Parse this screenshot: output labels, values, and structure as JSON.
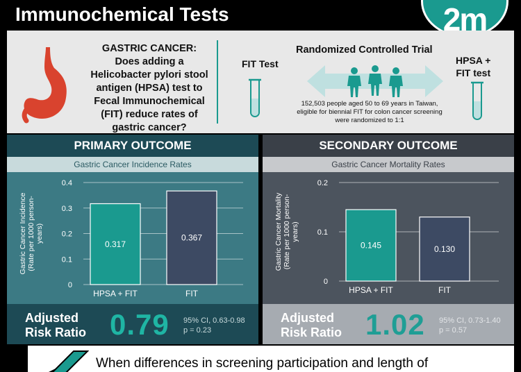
{
  "header": {
    "title": "Immunochemical Tests",
    "logo_text": "2m"
  },
  "intro": {
    "question_lines": [
      "GASTRIC CANCER:",
      "Does adding a",
      "Helicobacter pylori stool",
      "antigen (HPSA) test to",
      "Fecal Immunochemical",
      "(FIT) reduce rates of",
      "gastric cancer?"
    ],
    "fit_test_label": "FIT Test",
    "hpsa_test_label_lines": [
      "HPSA +",
      "FIT test"
    ],
    "rct_title": "Randomized Controlled Trial",
    "rct_desc_lines": [
      "152,503 people aged 50 to 69 years in Taiwan,",
      "eligible for biennial FIT for colon cancer screening",
      "were randomized to 1:1"
    ]
  },
  "panels": {
    "primary": {
      "heading": "PRIMARY OUTCOME",
      "subheading": "Gastric Cancer Incidence Rates",
      "arr_label_lines": [
        "Adjusted",
        "Risk Ratio"
      ],
      "arr_value": "0.79",
      "arr_ci_lines": [
        "95% CI, 0.63-0.98",
        "p = 0.23"
      ]
    },
    "secondary": {
      "heading": "SECONDARY OUTCOME",
      "subheading": "Gastric Cancer Mortality Rates",
      "arr_label_lines": [
        "Adjusted",
        "Risk Ratio"
      ],
      "arr_value": "1.02",
      "arr_ci_lines": [
        "95% CI, 0.73-1.40",
        "p = 0.57"
      ]
    }
  },
  "chart_data": [
    {
      "type": "bar",
      "title": "Gastric Cancer Incidence Rates",
      "ylabel_lines": [
        "Gastric Cancer Incidence",
        "(Rate per 1000 person-",
        "years)"
      ],
      "categories": [
        "HPSA + FIT",
        "FIT"
      ],
      "values": [
        0.317,
        0.367
      ],
      "value_labels": [
        "0.317",
        "0.367"
      ],
      "ylim": [
        0,
        0.4
      ],
      "yticks": [
        0,
        0.1,
        0.2,
        0.3,
        0.4
      ],
      "ytick_labels": [
        "0",
        "0.1",
        "0.2",
        "0.3",
        "0.4"
      ],
      "colors": [
        "#1a9a8f",
        "#3d4a63"
      ],
      "grid": true,
      "legend": "none"
    },
    {
      "type": "bar",
      "title": "Gastric Cancer Mortality Rates",
      "ylabel_lines": [
        "Gastric Cancer Mortality",
        "(Rate per 1000 person-",
        "years)"
      ],
      "categories": [
        "HPSA + FIT",
        "FIT"
      ],
      "values": [
        0.145,
        0.13
      ],
      "value_labels": [
        "0.145",
        "0.130"
      ],
      "ylim": [
        0,
        0.2
      ],
      "yticks": [
        0,
        0.1,
        0.2
      ],
      "ytick_labels": [
        "0",
        "0.1",
        "0.2"
      ],
      "colors": [
        "#1a9a8f",
        "#3d4a63"
      ],
      "grid": true,
      "legend": "none"
    }
  ],
  "footer": {
    "text": "When differences in screening participation and length of"
  },
  "colors": {
    "teal": "#1a9a8f",
    "dark_teal": "#1d4a55",
    "slate": "#3a4048",
    "navy_bar": "#3d4a63",
    "light_teal_arrow": "#bfe0e0"
  },
  "icons": {
    "stomach": "stomach-icon",
    "test_tube": "test-tube-icon",
    "people": "people-icon",
    "double_arrow": "double-arrow-icon",
    "footer_pencil": "pencil-icon"
  }
}
